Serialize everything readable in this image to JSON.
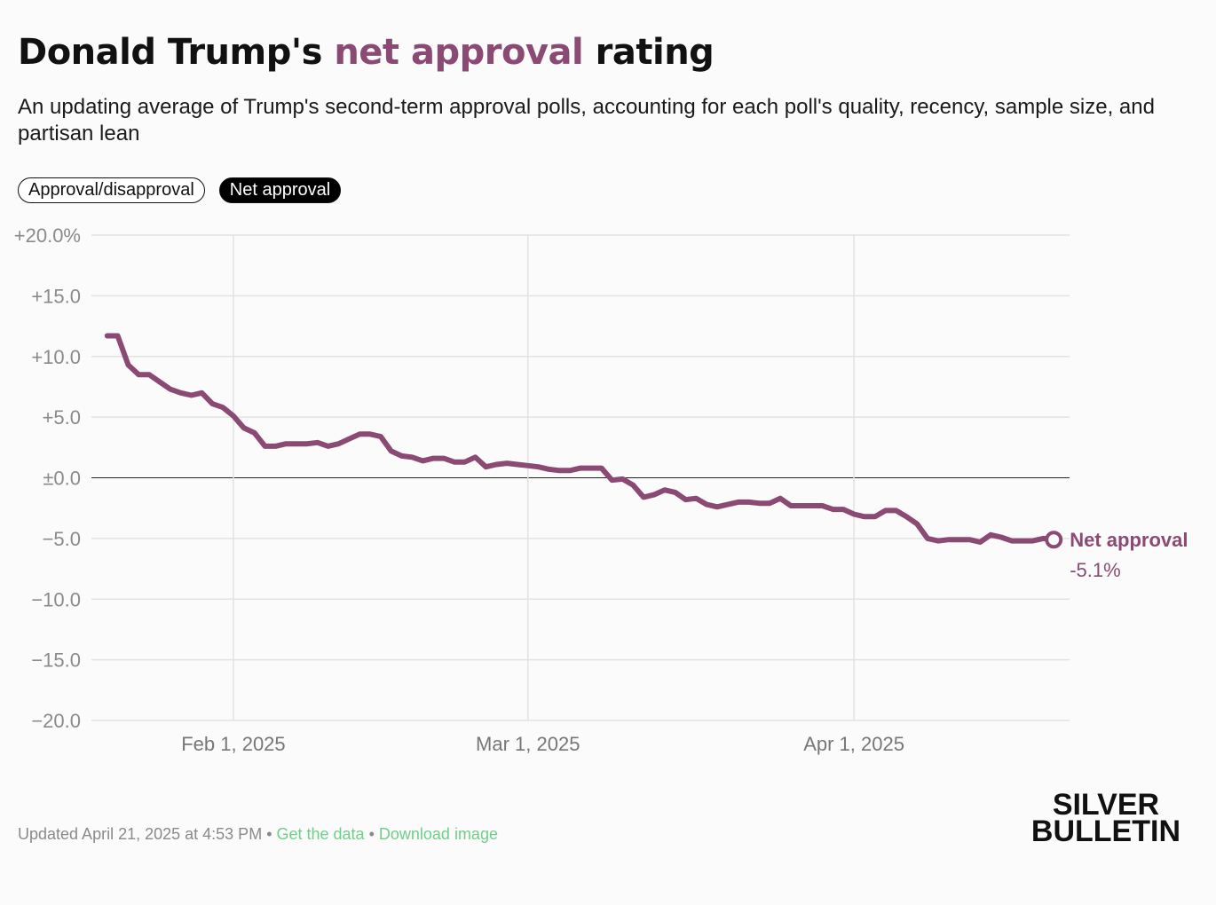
{
  "header": {
    "title_pre": "Donald Trump's ",
    "title_accent": "net approval",
    "title_post": " rating",
    "subtitle": "An updating average of Trump's second-term approval polls, accounting for each poll's quality, recency, sample size, and partisan lean"
  },
  "toggles": {
    "approval_label": "Approval/disapproval",
    "net_label": "Net approval"
  },
  "colors": {
    "accent": "#8b4a73",
    "link": "#6fcf8a"
  },
  "chart_data": {
    "type": "line",
    "title": "Donald Trump's net approval rating",
    "ylim": [
      -20,
      20
    ],
    "y_ticks": [
      {
        "value": 20,
        "label": "+20.0%"
      },
      {
        "value": 15,
        "label": "+15.0"
      },
      {
        "value": 10,
        "label": "+10.0"
      },
      {
        "value": 5,
        "label": "+5.0"
      },
      {
        "value": 0,
        "label": "±0.0"
      },
      {
        "value": -5,
        "label": "−5.0"
      },
      {
        "value": -10,
        "label": "−10.0"
      },
      {
        "value": -15,
        "label": "−15.0"
      },
      {
        "value": -20,
        "label": "−20.0"
      }
    ],
    "x_ticks": [
      {
        "day": 12,
        "label": "Feb 1, 2025"
      },
      {
        "day": 40,
        "label": "Mar 1, 2025"
      },
      {
        "day": 71,
        "label": "Apr 1, 2025"
      }
    ],
    "x_note": "x is days since Jan 20, 2025",
    "xlim": [
      -1.5,
      91.5
    ],
    "series": [
      {
        "name": "Net approval",
        "end_value_label": "-5.1%",
        "points": [
          [
            0,
            11.7
          ],
          [
            1,
            11.7
          ],
          [
            2,
            9.3
          ],
          [
            3,
            8.5
          ],
          [
            4,
            8.5
          ],
          [
            5,
            7.9
          ],
          [
            6,
            7.3
          ],
          [
            7,
            7.0
          ],
          [
            8,
            6.8
          ],
          [
            9,
            7.0
          ],
          [
            10,
            6.1
          ],
          [
            11,
            5.8
          ],
          [
            12,
            5.1
          ],
          [
            13,
            4.1
          ],
          [
            14,
            3.7
          ],
          [
            15,
            2.6
          ],
          [
            16,
            2.6
          ],
          [
            17,
            2.8
          ],
          [
            18,
            2.8
          ],
          [
            19,
            2.8
          ],
          [
            20,
            2.9
          ],
          [
            21,
            2.6
          ],
          [
            22,
            2.8
          ],
          [
            23,
            3.2
          ],
          [
            24,
            3.6
          ],
          [
            25,
            3.6
          ],
          [
            26,
            3.4
          ],
          [
            27,
            2.2
          ],
          [
            28,
            1.8
          ],
          [
            29,
            1.7
          ],
          [
            30,
            1.4
          ],
          [
            31,
            1.6
          ],
          [
            32,
            1.6
          ],
          [
            33,
            1.3
          ],
          [
            34,
            1.3
          ],
          [
            35,
            1.7
          ],
          [
            36,
            0.9
          ],
          [
            37,
            1.1
          ],
          [
            38,
            1.2
          ],
          [
            39,
            1.1
          ],
          [
            40,
            1.0
          ],
          [
            41,
            0.9
          ],
          [
            42,
            0.7
          ],
          [
            43,
            0.6
          ],
          [
            44,
            0.6
          ],
          [
            45,
            0.8
          ],
          [
            46,
            0.8
          ],
          [
            47,
            0.8
          ],
          [
            48,
            -0.2
          ],
          [
            49,
            -0.1
          ],
          [
            50,
            -0.6
          ],
          [
            51,
            -1.6
          ],
          [
            52,
            -1.4
          ],
          [
            53,
            -1.0
          ],
          [
            54,
            -1.2
          ],
          [
            55,
            -1.8
          ],
          [
            56,
            -1.7
          ],
          [
            57,
            -2.2
          ],
          [
            58,
            -2.4
          ],
          [
            59,
            -2.2
          ],
          [
            60,
            -2.0
          ],
          [
            61,
            -2.0
          ],
          [
            62,
            -2.1
          ],
          [
            63,
            -2.1
          ],
          [
            64,
            -1.7
          ],
          [
            65,
            -2.3
          ],
          [
            66,
            -2.3
          ],
          [
            67,
            -2.3
          ],
          [
            68,
            -2.3
          ],
          [
            69,
            -2.6
          ],
          [
            70,
            -2.6
          ],
          [
            71,
            -3.0
          ],
          [
            72,
            -3.2
          ],
          [
            73,
            -3.2
          ],
          [
            74,
            -2.7
          ],
          [
            75,
            -2.7
          ],
          [
            76,
            -3.2
          ],
          [
            77,
            -3.8
          ],
          [
            78,
            -5.0
          ],
          [
            79,
            -5.2
          ],
          [
            80,
            -5.1
          ],
          [
            81,
            -5.1
          ],
          [
            82,
            -5.1
          ],
          [
            83,
            -5.3
          ],
          [
            84,
            -4.7
          ],
          [
            85,
            -4.9
          ],
          [
            86,
            -5.2
          ],
          [
            87,
            -5.2
          ],
          [
            88,
            -5.2
          ],
          [
            89,
            -5.0
          ],
          [
            90,
            -5.1
          ]
        ]
      }
    ]
  },
  "footer": {
    "updated": "Updated April 21, 2025 at 4:53 PM",
    "separator": " • ",
    "get_data": "Get the data",
    "download": "Download image"
  },
  "brand": {
    "line1": "SILVER",
    "line2": "BULLETIN"
  }
}
